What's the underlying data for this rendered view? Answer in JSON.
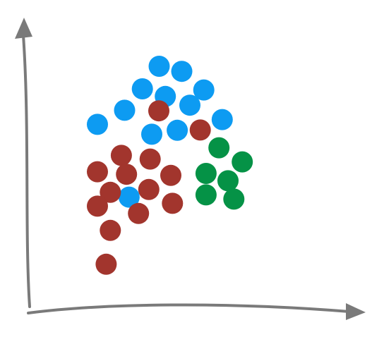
{
  "chart_data": {
    "type": "scatter",
    "title": "",
    "xlabel": "",
    "ylabel": "",
    "xlim": [
      0,
      100
    ],
    "ylim": [
      0,
      100
    ],
    "grid": false,
    "legend": "none",
    "axis_color": "#7a7a7a",
    "series": [
      {
        "color": "#0d9bf2",
        "points": [
          [
            40.5,
            86.5
          ],
          [
            47.5,
            84.7
          ],
          [
            35.3,
            78.5
          ],
          [
            42.4,
            75.8
          ],
          [
            54.3,
            78.1
          ],
          [
            29.8,
            70.9
          ],
          [
            50.0,
            72.7
          ],
          [
            60.0,
            67.6
          ],
          [
            21.4,
            65.9
          ],
          [
            38.2,
            62.4
          ],
          [
            46.1,
            63.8
          ],
          [
            31.2,
            40.1
          ]
        ]
      },
      {
        "color": "#a2352d",
        "points": [
          [
            40.4,
            70.7
          ],
          [
            53.2,
            63.9
          ],
          [
            28.8,
            54.9
          ],
          [
            37.7,
            53.6
          ],
          [
            21.4,
            49.1
          ],
          [
            30.4,
            48.2
          ],
          [
            44.1,
            47.8
          ],
          [
            25.4,
            41.8
          ],
          [
            37.3,
            42.8
          ],
          [
            44.6,
            37.9
          ],
          [
            21.4,
            36.9
          ],
          [
            34.1,
            34.3
          ],
          [
            25.4,
            28.3
          ],
          [
            24.1,
            16.3
          ]
        ]
      },
      {
        "color": "#059246",
        "points": [
          [
            59.0,
            57.6
          ],
          [
            66.2,
            52.6
          ],
          [
            55.0,
            48.5
          ],
          [
            61.8,
            45.9
          ],
          [
            55.0,
            40.9
          ],
          [
            63.6,
            39.4
          ]
        ]
      }
    ]
  }
}
